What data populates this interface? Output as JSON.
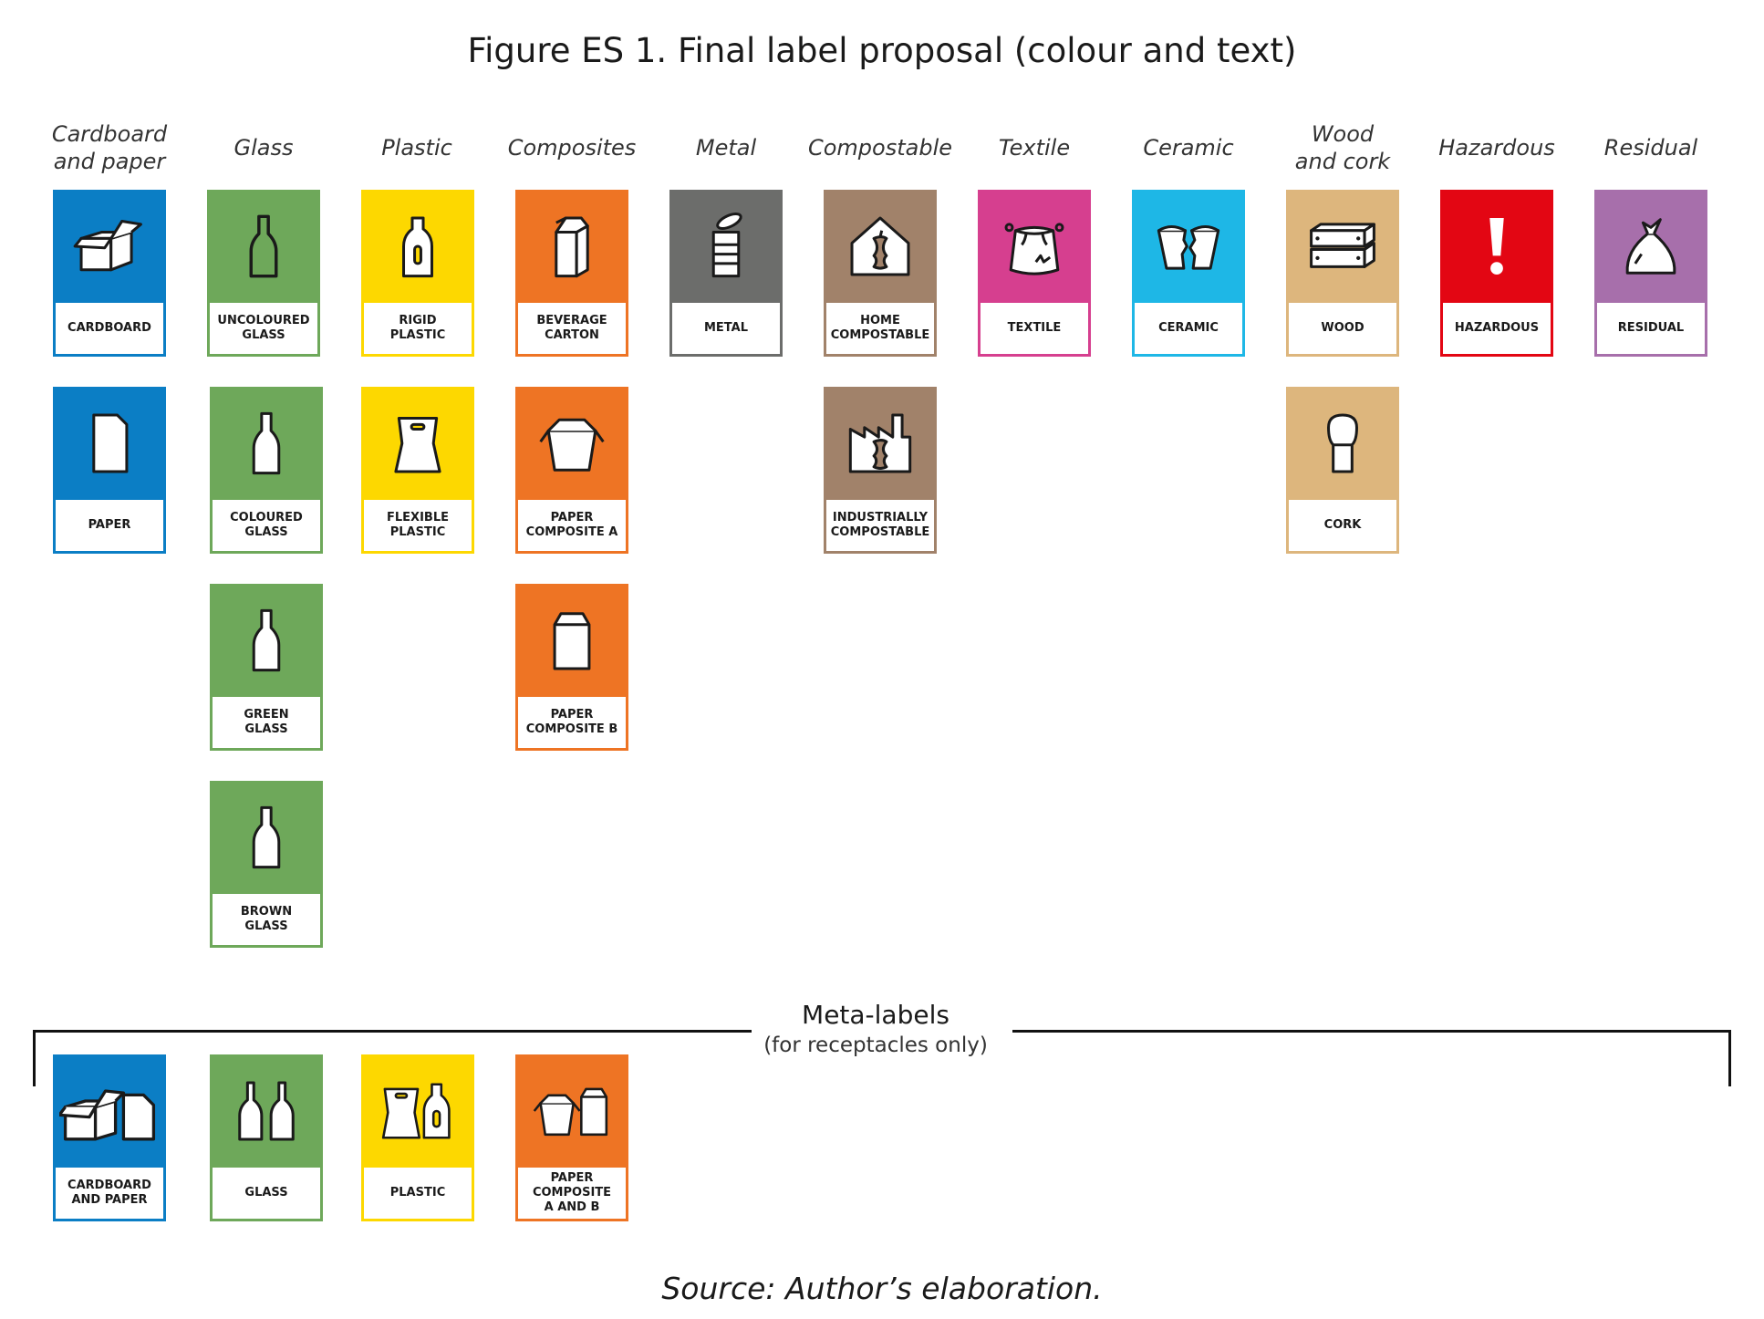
{
  "figure": {
    "title": "Figure ES 1. Final label proposal (colour and text)",
    "source": "Source: Author’s elaboration."
  },
  "colors": {
    "blue": "#0b7ec5",
    "green": "#6ea85a",
    "yellow": "#fdd800",
    "orange": "#ee7424",
    "grey": "#6c6d6b",
    "brown": "#a1826a",
    "pink": "#d63f8f",
    "cyan": "#1eb7e6",
    "tan": "#ddb67d",
    "red": "#e30613",
    "purple": "#a76fab"
  },
  "categories": [
    "Cardboard\nand paper",
    "Glass",
    "Plastic",
    "Composites",
    "Metal",
    "Compostable",
    "Textile",
    "Ceramic",
    "Wood\nand cork",
    "Hazardous",
    "Residual"
  ],
  "labels": [
    {
      "text": "CARDBOARD",
      "icon": "cardboard-box-icon",
      "color": "#0b7ec5"
    },
    {
      "text": "PAPER",
      "icon": "paper-sheet-icon",
      "color": "#0b7ec5"
    },
    {
      "text": "UNCOLOURED\nGLASS",
      "icon": "bottle-outline-icon",
      "color": "#6ea85a"
    },
    {
      "text": "COLOURED\nGLASS",
      "icon": "bottle-icon",
      "color": "#6ea85a"
    },
    {
      "text": "GREEN\nGLASS",
      "icon": "bottle-icon",
      "color": "#6ea85a"
    },
    {
      "text": "BROWN\nGLASS",
      "icon": "bottle-icon",
      "color": "#6ea85a"
    },
    {
      "text": "RIGID\nPLASTIC",
      "icon": "plastic-bottle-icon",
      "color": "#fdd800"
    },
    {
      "text": "FLEXIBLE\nPLASTIC",
      "icon": "plastic-bag-icon",
      "color": "#fdd800"
    },
    {
      "text": "BEVERAGE\nCARTON",
      "icon": "beverage-carton-icon",
      "color": "#ee7424"
    },
    {
      "text": "PAPER\nCOMPOSITE A",
      "icon": "takeaway-box-icon",
      "color": "#ee7424"
    },
    {
      "text": "PAPER\nCOMPOSITE B",
      "icon": "paper-bag-icon",
      "color": "#ee7424"
    },
    {
      "text": "METAL",
      "icon": "tin-can-icon",
      "color": "#6c6d6b"
    },
    {
      "text": "HOME\nCOMPOSTABLE",
      "icon": "home-apple-core-icon",
      "color": "#a1826a"
    },
    {
      "text": "INDUSTRIALLY\nCOMPOSTABLE",
      "icon": "factory-apple-core-icon",
      "color": "#a1826a"
    },
    {
      "text": "TEXTILE",
      "icon": "cloth-bag-icon",
      "color": "#d63f8f"
    },
    {
      "text": "CERAMIC",
      "icon": "broken-cup-icon",
      "color": "#1eb7e6"
    },
    {
      "text": "WOOD",
      "icon": "wooden-crate-icon",
      "color": "#ddb67d"
    },
    {
      "text": "CORK",
      "icon": "cork-icon",
      "color": "#ddb67d"
    },
    {
      "text": "HAZARDOUS",
      "icon": "exclamation-icon",
      "color": "#e30613"
    },
    {
      "text": "RESIDUAL",
      "icon": "trash-bag-icon",
      "color": "#a76fab"
    }
  ],
  "meta": {
    "title": "Meta-labels",
    "subtitle": "(for receptacles only)",
    "labels": [
      {
        "text": "CARDBOARD\nAND PAPER",
        "icon": "box-and-paper-icon",
        "color": "#0b7ec5"
      },
      {
        "text": "GLASS",
        "icon": "two-bottles-icon",
        "color": "#6ea85a"
      },
      {
        "text": "PLASTIC",
        "icon": "bag-and-bottle-icon",
        "color": "#fdd800"
      },
      {
        "text": "PAPER\nCOMPOSITE\nA AND B",
        "icon": "box-and-bag-icon",
        "color": "#ee7424"
      }
    ]
  }
}
